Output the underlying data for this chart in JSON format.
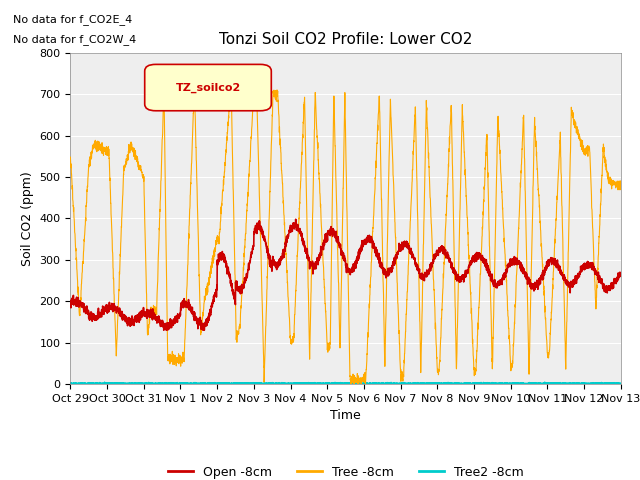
{
  "title": "Tonzi Soil CO2 Profile: Lower CO2",
  "xlabel": "Time",
  "ylabel": "Soil CO2 (ppm)",
  "annotation_lines": [
    "No data for f_CO2E_4",
    "No data for f_CO2W_4"
  ],
  "legend_label": "TZ_soilco2",
  "series_labels": [
    "Open -8cm",
    "Tree -8cm",
    "Tree2 -8cm"
  ],
  "series_colors": [
    "#cc0000",
    "#ffaa00",
    "#00cccc"
  ],
  "ylim": [
    0,
    800
  ],
  "plot_background": "#eeeeee",
  "x_tick_labels": [
    "Oct 29",
    "Oct 30",
    "Oct 31",
    "Nov 1",
    "Nov 2",
    "Nov 3",
    "Nov 4",
    "Nov 5",
    "Nov 6",
    "Nov 7",
    "Nov 8",
    "Nov 9",
    "Nov 10",
    "Nov 11",
    "Nov 12",
    "Nov 13"
  ],
  "n_points": 3360,
  "duration_days": 15,
  "legend_box_color": "#ffffcc",
  "legend_box_edge": "#cc0000",
  "title_fontsize": 11,
  "tick_fontsize": 8,
  "label_fontsize": 9
}
